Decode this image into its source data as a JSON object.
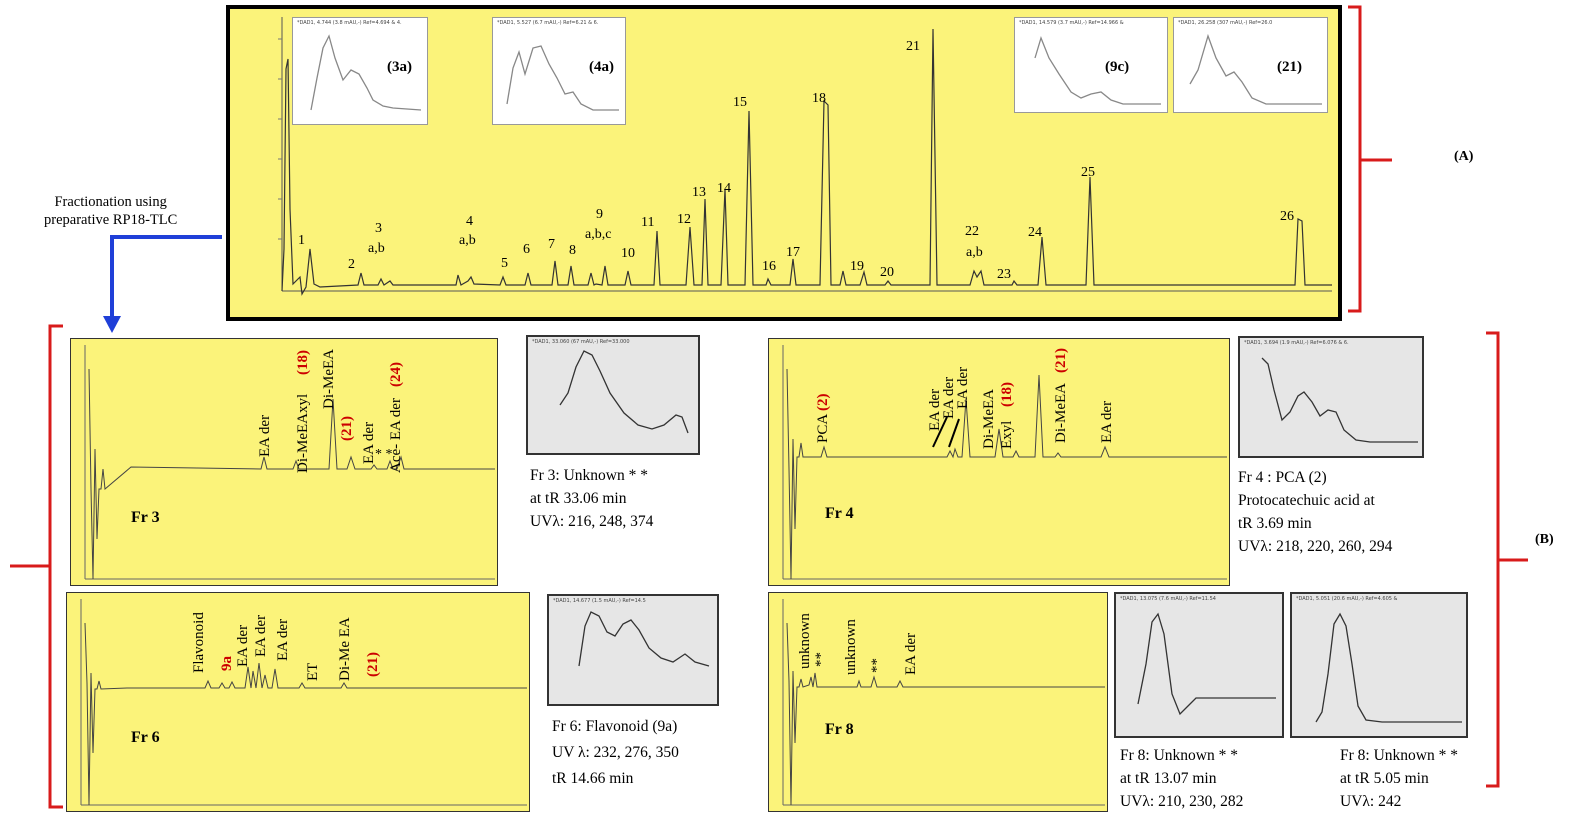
{
  "note": {
    "line1": "Fractionation using",
    "line2": "preparative RP18-TLC"
  },
  "section_labels": {
    "a": "(A)",
    "b": "(B)"
  },
  "panelA": {
    "uv_tags": [
      "(3a)",
      "(4a)",
      "(9c)",
      "(21)"
    ],
    "peak_labels": [
      "1",
      "2",
      "3",
      "a,b",
      "4",
      "a,b",
      "5",
      "6",
      "7",
      "8",
      "9",
      "a,b,c",
      "10",
      "11",
      "12",
      "13",
      "14",
      "15",
      "16",
      "17",
      "18",
      "19",
      "20",
      "21",
      "22",
      "a,b",
      "23",
      "24",
      "25",
      "26"
    ]
  },
  "fr3": {
    "name": "Fr 3",
    "peaks": [
      "EA der",
      "Di-MeEAxyl",
      "(18)",
      "Di-MeEA",
      "(21)",
      "EA der",
      "* *",
      "Ace- EA der",
      "(24)"
    ],
    "caption": [
      "Fr 3: Unknown * *",
      "at tR 33.06 min",
      "UVλ: 216, 248, 374"
    ]
  },
  "fr4": {
    "name": "Fr 4",
    "peaks": [
      "PCA",
      "(2)",
      "EA der",
      "EA der",
      "EA der",
      "Di-MeEA",
      "Exyl",
      "(18)",
      "Di-MeEA",
      "(21)",
      "EA der"
    ],
    "caption": [
      "Fr 4 : PCA (2)",
      "Protocatechuic acid at",
      "tR 3.69 min",
      "UVλ: 218, 220, 260, 294"
    ]
  },
  "fr6": {
    "name": "Fr 6",
    "peaks": [
      "Flavonoid",
      "9a",
      "EA der",
      "EA der",
      "EA der",
      "ET",
      "Di-Me EA",
      "(21)"
    ],
    "caption": [
      "Fr 6: Flavonoid (9a)",
      "UV λ: 232, 276, 350",
      "tR 14.66 min"
    ]
  },
  "fr8": {
    "name": "Fr 8",
    "peaks": [
      "unknown",
      "**",
      "unknown",
      "**",
      "EA der"
    ],
    "caption_a": [
      "Fr 8: Unknown * *",
      "at tR 13.07 min",
      "UVλ: 210, 230, 282"
    ],
    "caption_b": [
      "Fr 8: Unknown * *",
      "at tR 5.05 min",
      "UVλ: 242"
    ]
  },
  "colors": {
    "panel": "#fbf37a",
    "bracket": "#d81b1b",
    "arrow": "#1f3fd8",
    "red_label": "#cc0000"
  }
}
